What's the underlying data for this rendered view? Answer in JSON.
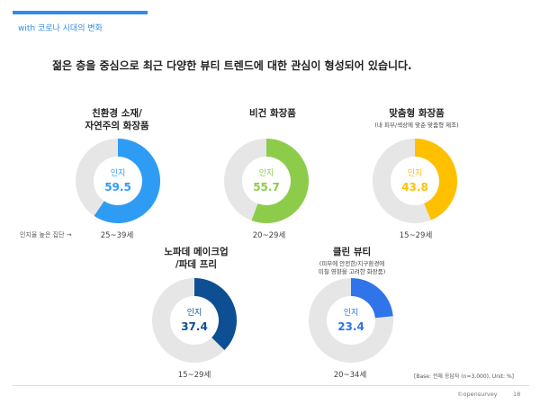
{
  "header": {
    "title": "with 코로나 시대의 변화",
    "headline": "젊은 층을 중심으로 최근 다양한 뷰티 트렌드에 대한 관심이 형성되어 있습니다."
  },
  "side_note": "인지율 높은 집단 →",
  "base_note": "[Base: 전체 응답자 (n=3,000), Unit: %]",
  "footer": {
    "brand": "©opensurvey",
    "page": "18"
  },
  "chart_data": [
    {
      "type": "donut",
      "label": "친환경 소재/\n자연주의 화장품",
      "sublabel": "",
      "center_label": "인지",
      "value": 59.5,
      "caption": "25~39세",
      "color": "#2e9bf5",
      "track_color": "#e6e6e6"
    },
    {
      "type": "donut",
      "label": "비건 화장품",
      "sublabel": "",
      "center_label": "인지",
      "value": 55.7,
      "caption": "20~29세",
      "color": "#8ccc4a",
      "track_color": "#e6e6e6"
    },
    {
      "type": "donut",
      "label": "맞춤형 화장품",
      "sublabel": "(내 피부/색상에 맞춘 맞춤형 제조)",
      "center_label": "인지",
      "value": 43.8,
      "caption": "15~29세",
      "color": "#ffc000",
      "track_color": "#e6e6e6"
    },
    {
      "type": "donut",
      "label": "노파데 메이크업\n/파데 프리",
      "sublabel": "",
      "center_label": "인지",
      "value": 37.4,
      "caption": "15~29세",
      "color": "#0e4f94",
      "track_color": "#e6e6e6"
    },
    {
      "type": "donut",
      "label": "클린 뷰티",
      "sublabel": "(피부에 안전한/지구환경에\n미칠 영향을 고려한 화장품)",
      "center_label": "인지",
      "value": 23.4,
      "caption": "20~34세",
      "color": "#2f74e8",
      "track_color": "#e6e6e6"
    }
  ]
}
